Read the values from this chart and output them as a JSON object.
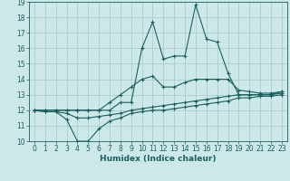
{
  "xlabel": "Humidex (Indice chaleur)",
  "xlim": [
    -0.5,
    23.5
  ],
  "ylim": [
    10,
    19
  ],
  "xticks": [
    0,
    1,
    2,
    3,
    4,
    5,
    6,
    7,
    8,
    9,
    10,
    11,
    12,
    13,
    14,
    15,
    16,
    17,
    18,
    19,
    20,
    21,
    22,
    23
  ],
  "yticks": [
    10,
    11,
    12,
    13,
    14,
    15,
    16,
    17,
    18,
    19
  ],
  "bg_color": "#cce8e8",
  "grid_color": "#aac8c8",
  "line_color": "#1a6060",
  "x": [
    0,
    1,
    2,
    3,
    4,
    5,
    6,
    7,
    8,
    9,
    10,
    11,
    12,
    13,
    14,
    15,
    16,
    17,
    18,
    19,
    20,
    21,
    22,
    23
  ],
  "line_max": [
    12.0,
    12.0,
    12.0,
    12.0,
    12.0,
    12.0,
    12.0,
    12.0,
    12.5,
    12.5,
    16.0,
    17.7,
    15.3,
    15.5,
    15.5,
    18.8,
    16.6,
    16.4,
    14.4,
    13.0,
    13.0,
    13.0,
    13.0,
    13.2
  ],
  "line_upper": [
    12.0,
    12.0,
    12.0,
    12.0,
    12.0,
    12.0,
    12.0,
    12.5,
    13.0,
    13.5,
    14.0,
    14.2,
    13.5,
    13.5,
    13.8,
    14.0,
    14.0,
    14.0,
    14.0,
    13.3,
    13.2,
    13.1,
    13.1,
    13.2
  ],
  "line_mean": [
    12.0,
    11.9,
    11.9,
    11.8,
    11.5,
    11.5,
    11.6,
    11.7,
    11.8,
    12.0,
    12.1,
    12.2,
    12.3,
    12.4,
    12.5,
    12.6,
    12.7,
    12.8,
    12.9,
    13.0,
    13.0,
    13.0,
    13.0,
    13.1
  ],
  "line_lower": [
    12.0,
    11.9,
    11.9,
    11.4,
    10.0,
    10.0,
    10.8,
    11.3,
    11.5,
    11.8,
    11.9,
    12.0,
    12.0,
    12.1,
    12.2,
    12.3,
    12.4,
    12.5,
    12.6,
    12.8,
    12.8,
    12.9,
    12.9,
    13.0
  ],
  "tick_fontsize": 5.5,
  "xlabel_fontsize": 6.5,
  "lw": 0.8,
  "marker_size": 3.0
}
